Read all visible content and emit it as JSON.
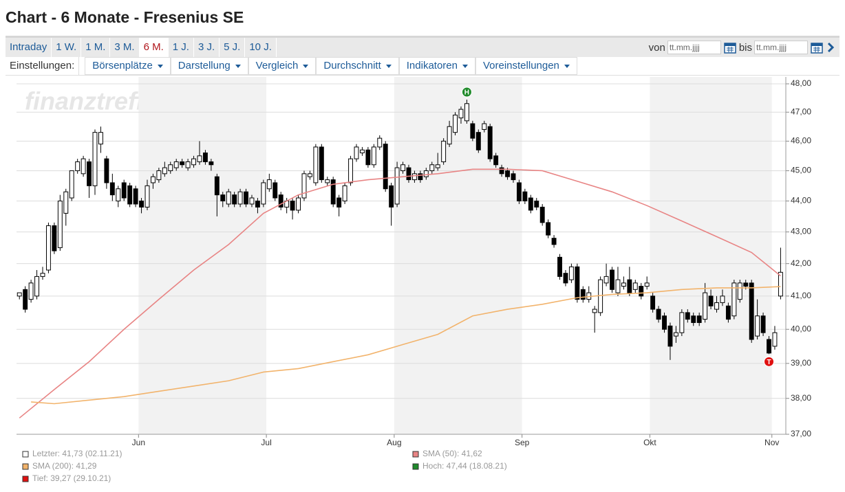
{
  "header": {
    "title": "Chart - 6 Monate - Fresenius SE"
  },
  "toolbar": {
    "periods": [
      "Intraday",
      "1 W.",
      "1 M.",
      "3 M.",
      "6 M.",
      "1 J.",
      "3 J.",
      "5 J.",
      "10 J."
    ],
    "active_period": "6 M.",
    "from_label": "von",
    "to_label": "bis",
    "date_placeholder": "tt.mm.jjjj"
  },
  "settings": {
    "label": "Einstellungen:",
    "menus": [
      "Börsenplätze",
      "Darstellung",
      "Vergleich",
      "Durchschnitt",
      "Indikatoren",
      "Voreinstellungen"
    ]
  },
  "chart_data": {
    "type": "candlestick",
    "watermark": "finanztreff.de:",
    "name": "Letzter: 41,73 (02.11.21)",
    "up_color": "#ffffff",
    "down_color": "#000000",
    "band_color": "#f2f2f2",
    "grid": true,
    "log_scale": true,
    "categories": [
      null,
      null,
      null,
      null,
      null,
      null,
      null,
      null,
      null,
      null,
      null,
      null,
      null,
      null,
      null,
      null,
      null,
      null,
      null,
      null,
      null,
      "Jun",
      null,
      null,
      null,
      null,
      null,
      null,
      null,
      null,
      null,
      null,
      null,
      null,
      null,
      null,
      null,
      null,
      null,
      null,
      null,
      null,
      null,
      "Jul",
      null,
      null,
      null,
      null,
      null,
      null,
      null,
      null,
      null,
      null,
      null,
      null,
      null,
      null,
      null,
      null,
      null,
      null,
      null,
      null,
      null,
      "Aug",
      null,
      null,
      null,
      null,
      null,
      null,
      null,
      null,
      null,
      null,
      null,
      null,
      null,
      null,
      null,
      null,
      null,
      null,
      null,
      null,
      null,
      "Sep",
      null,
      null,
      null,
      null,
      null,
      null,
      null,
      null,
      null,
      null,
      null,
      null,
      null,
      null,
      null,
      null,
      null,
      null,
      null,
      null,
      null,
      "Okt",
      null,
      null,
      null,
      null,
      null,
      null,
      null,
      null,
      null,
      null,
      null,
      null,
      null,
      null,
      null,
      null,
      null,
      null,
      null,
      null,
      "Nov",
      null
    ],
    "open": [
      41.0,
      41.2,
      40.9,
      41.0,
      41.6,
      41.8,
      43.2,
      42.5,
      43.6,
      44.1,
      45.0,
      44.9,
      45.3,
      44.5,
      45.9,
      45.4,
      44.6,
      44.0,
      44.6,
      44.5,
      44.4,
      44.0,
      43.8,
      44.6,
      44.7,
      44.9,
      45.0,
      45.1,
      45.3,
      45.1,
      45.2,
      45.3,
      45.6,
      45.3,
      44.8,
      44.2,
      43.9,
      44.2,
      43.9,
      44.3,
      43.9,
      44.0,
      43.9,
      44.4,
      44.6,
      44.2,
      43.8,
      44.0,
      43.7,
      44.1,
      44.8,
      44.6,
      45.8,
      44.6,
      44.7,
      44.1,
      44.0,
      44.6,
      45.4,
      45.6,
      45.7,
      45.2,
      45.8,
      45.9,
      44.5,
      43.9,
      45.0,
      45.1,
      44.7,
      44.9,
      44.8,
      45.0,
      45.1,
      45.3,
      45.9,
      46.3,
      46.8,
      46.7,
      46.6,
      46.3,
      46.4,
      46.5,
      45.5,
      45.1,
      45.0,
      44.9,
      44.6,
      44.3,
      44.1,
      44.0,
      43.8,
      43.3,
      42.8,
      42.2,
      41.7,
      41.5,
      41.9,
      41.2,
      40.9,
      40.5,
      40.5,
      41.4,
      41.8,
      41.1,
      41.3,
      41.5,
      41.2,
      41.3,
      41.3,
      41.0,
      40.6,
      40.4,
      40.1,
      39.8,
      39.9,
      40.5,
      40.4,
      40.4,
      40.3,
      41.0,
      40.6,
      40.8,
      40.7,
      40.4,
      40.9,
      41.4,
      41.4,
      39.8,
      40.4,
      39.7,
      39.5,
      41.0
    ],
    "high": [
      41.1,
      41.3,
      41.5,
      41.8,
      41.9,
      43.3,
      43.3,
      44.2,
      44.4,
      45.0,
      45.4,
      45.5,
      45.4,
      46.4,
      46.5,
      45.5,
      44.9,
      44.5,
      44.7,
      44.6,
      44.5,
      44.1,
      44.7,
      44.9,
      45.1,
      45.3,
      45.3,
      45.4,
      45.4,
      45.4,
      45.5,
      46.0,
      45.7,
      45.4,
      44.9,
      44.3,
      44.4,
      44.3,
      44.4,
      44.4,
      44.2,
      44.1,
      44.7,
      44.9,
      44.7,
      44.3,
      44.1,
      44.1,
      44.2,
      45.0,
      45.0,
      45.9,
      45.9,
      44.8,
      44.8,
      44.2,
      44.6,
      45.5,
      45.9,
      45.8,
      45.8,
      45.9,
      46.2,
      46.0,
      44.6,
      45.3,
      45.3,
      45.2,
      45.0,
      45.0,
      45.1,
      45.3,
      45.6,
      46.1,
      46.7,
      47.0,
      47.2,
      47.44,
      46.7,
      46.4,
      46.7,
      46.6,
      45.6,
      45.2,
      45.1,
      45.0,
      44.7,
      44.4,
      44.2,
      44.1,
      43.9,
      43.4,
      42.9,
      42.3,
      41.8,
      42.0,
      42.0,
      41.3,
      41.3,
      40.7,
      41.6,
      42.0,
      41.9,
      41.9,
      41.6,
      41.9,
      41.5,
      41.4,
      41.6,
      41.1,
      40.7,
      40.5,
      40.2,
      40.1,
      40.6,
      40.6,
      40.5,
      40.5,
      41.4,
      41.2,
      41.0,
      41.2,
      40.8,
      41.5,
      41.5,
      41.5,
      41.5,
      40.9,
      40.5,
      39.8,
      40.1,
      42.5
    ],
    "low": [
      40.9,
      40.5,
      40.8,
      40.9,
      41.5,
      41.7,
      42.3,
      42.4,
      43.2,
      44.0,
      44.9,
      44.8,
      44.1,
      44.2,
      45.6,
      44.4,
      44.0,
      43.8,
      44.0,
      43.8,
      43.8,
      43.6,
      43.7,
      44.4,
      44.6,
      44.8,
      44.9,
      45.0,
      45.1,
      45.0,
      45.1,
      45.2,
      45.2,
      45.0,
      43.5,
      43.8,
      43.8,
      43.8,
      43.8,
      43.8,
      43.8,
      43.6,
      43.8,
      44.3,
      44.0,
      43.7,
      43.6,
      43.4,
      43.6,
      44.0,
      44.7,
      44.5,
      44.6,
      44.5,
      43.8,
      43.5,
      43.9,
      44.5,
      45.3,
      45.5,
      45.1,
      45.1,
      45.7,
      44.3,
      43.2,
      43.8,
      44.9,
      44.6,
      44.6,
      44.6,
      44.7,
      44.9,
      45.0,
      45.2,
      45.8,
      46.2,
      46.6,
      46.6,
      46.0,
      45.6,
      46.3,
      45.3,
      45.1,
      44.8,
      44.7,
      44.6,
      43.9,
      43.9,
      43.6,
      43.7,
      43.2,
      42.8,
      42.5,
      41.5,
      41.3,
      41.4,
      40.8,
      40.8,
      40.8,
      39.9,
      40.4,
      41.3,
      41.1,
      41.0,
      41.2,
      41.0,
      41.1,
      40.9,
      41.2,
      40.5,
      40.2,
      39.9,
      39.1,
      39.6,
      39.8,
      40.2,
      40.1,
      40.1,
      40.2,
      40.6,
      40.5,
      40.7,
      40.2,
      40.3,
      40.8,
      41.2,
      39.6,
      39.7,
      39.8,
      39.27,
      39.4,
      40.9
    ],
    "close": [
      41.1,
      40.6,
      41.4,
      41.6,
      41.7,
      43.2,
      42.4,
      44.0,
      44.3,
      45.0,
      45.3,
      45.4,
      44.5,
      46.3,
      46.3,
      44.6,
      44.2,
      44.4,
      44.1,
      43.9,
      43.9,
      43.8,
      44.5,
      44.8,
      45.0,
      45.1,
      45.2,
      45.3,
      45.2,
      45.3,
      45.4,
      45.5,
      45.3,
      45.2,
      44.2,
      44.0,
      44.3,
      43.9,
      44.3,
      43.9,
      44.1,
      43.8,
      44.6,
      44.7,
      44.1,
      43.8,
      44.0,
      43.7,
      44.1,
      44.9,
      44.9,
      45.8,
      44.7,
      44.7,
      43.9,
      43.8,
      44.5,
      45.4,
      45.8,
      45.7,
      45.2,
      45.8,
      46.1,
      44.4,
      43.8,
      45.1,
      45.2,
      44.7,
      44.9,
      44.7,
      45.0,
      45.2,
      45.2,
      46.0,
      46.5,
      46.9,
      47.1,
      47.3,
      46.1,
      45.7,
      46.6,
      45.4,
      45.2,
      44.9,
      44.8,
      44.7,
      44.0,
      44.0,
      43.7,
      43.8,
      43.3,
      42.9,
      42.6,
      41.6,
      41.4,
      41.9,
      40.9,
      40.9,
      41.1,
      40.6,
      41.5,
      41.6,
      41.2,
      41.5,
      41.4,
      41.1,
      41.4,
      41.0,
      41.4,
      40.6,
      40.3,
      40.0,
      39.5,
      39.9,
      40.5,
      40.3,
      40.2,
      40.2,
      41.1,
      40.7,
      40.8,
      41.0,
      40.3,
      41.4,
      41.4,
      41.3,
      39.7,
      40.4,
      39.9,
      39.3,
      39.9,
      41.73
    ],
    "lines": [
      {
        "name": "SMA (50): 41,62",
        "color": "#e88484",
        "x": [
          0,
          6,
          12,
          18,
          24,
          30,
          36,
          42,
          48,
          54,
          60,
          66,
          72,
          78,
          84,
          90,
          96,
          102,
          108,
          114,
          120,
          126,
          131
        ],
        "values": [
          37.45,
          38.25,
          39.05,
          40.0,
          40.9,
          41.8,
          42.6,
          43.6,
          44.2,
          44.55,
          44.7,
          44.8,
          44.9,
          45.05,
          45.05,
          45.0,
          44.65,
          44.3,
          43.85,
          43.35,
          42.85,
          42.35,
          41.62
        ]
      },
      {
        "name": "SMA (200): 41,29",
        "color": "#f2b36b",
        "x": [
          2,
          6,
          12,
          18,
          24,
          30,
          36,
          42,
          48,
          54,
          60,
          66,
          72,
          78,
          84,
          90,
          96,
          102,
          108,
          114,
          120,
          126,
          131
        ],
        "values": [
          37.9,
          37.85,
          37.95,
          38.05,
          38.2,
          38.35,
          38.5,
          38.75,
          38.85,
          39.05,
          39.25,
          39.55,
          39.85,
          40.4,
          40.6,
          40.75,
          40.95,
          41.05,
          41.1,
          41.2,
          41.25,
          41.25,
          41.29
        ]
      }
    ],
    "markers": [
      {
        "name": "Hoch: 47,44 (18.08.21)",
        "label": "H",
        "color": "#1f8a2a",
        "value": 47.44
      },
      {
        "name": "Tief: 39,27 (29.10.21)",
        "label": "T",
        "color": "#e01010",
        "value": 39.27
      }
    ],
    "ylim": [
      37,
      48
    ],
    "yticks": [
      {
        "value": 37,
        "label": "37,00"
      },
      {
        "value": 38,
        "label": "38,00"
      },
      {
        "value": 39,
        "label": "39,00"
      },
      {
        "value": 40,
        "label": "40,00"
      },
      {
        "value": 41,
        "label": "41,00"
      },
      {
        "value": 42,
        "label": "42,00"
      },
      {
        "value": 43,
        "label": "43,00"
      },
      {
        "value": 44,
        "label": "44,00"
      },
      {
        "value": 45,
        "label": "45,00"
      },
      {
        "value": 46,
        "label": "46,00"
      },
      {
        "value": 47,
        "label": "47,00"
      },
      {
        "value": 48,
        "label": "48,00"
      }
    ]
  }
}
